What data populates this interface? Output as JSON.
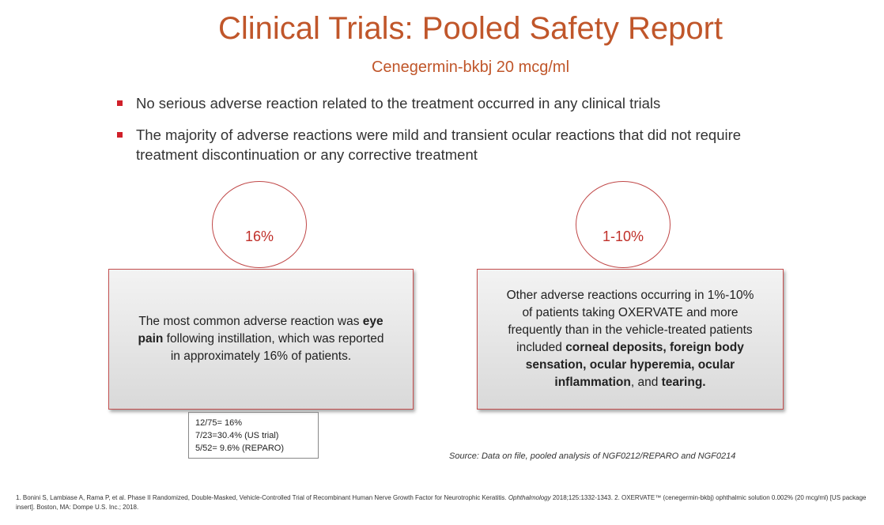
{
  "title": "Clinical Trials: Pooled Safety Report",
  "subtitle": "Cenegermin-bkbj 20 mcg/ml",
  "bullets": [
    "No serious adverse reaction related to the treatment occurred in any clinical trials",
    "The majority of adverse reactions were mild and transient ocular reactions that did not require treatment discontinuation or any corrective treatment"
  ],
  "bullet_color": "#d0202a",
  "accent_color": "#c0562a",
  "left": {
    "circle": "16%",
    "text_pre": "The most common adverse reaction was ",
    "text_bold": "eye pain",
    "text_post": " following instillation, which was reported in approximately 16% of patients."
  },
  "stats": [
    "12/75= 16%",
    "7/23=30.4% (US trial)",
    "5/52= 9.6% (REPARO)"
  ],
  "right": {
    "circle": "1-10%",
    "text_pre": "Other adverse reactions occurring in 1%-10% of patients taking OXERVATE and more frequently than in the vehicle-treated patients included ",
    "text_bold": "corneal deposits, foreign body sensation, ocular hyperemia, ocular inflammation",
    "text_mid": ", and ",
    "text_bold2": "tearing."
  },
  "source": "Source: Data on file, pooled analysis of NGF0212/REPARO and NGF0214",
  "refs": {
    "a": "1. Bonini S, Lambiase A, Rama P, et al. Phase II Randomized, Double-Masked, Vehicle-Controlled Trial of Recombinant Human Nerve Growth Factor for Neurotrophic Keratitis. ",
    "journal": "Ophthalmology",
    "b": " 2018;125:1332-1343. 2. OXERVATE™ (cenegermin-bkbj) ophthalmic solution 0.002% (20 mcg/ml) [US package insert]. Boston, MA: Dompe U.S. Inc.; 2018."
  }
}
